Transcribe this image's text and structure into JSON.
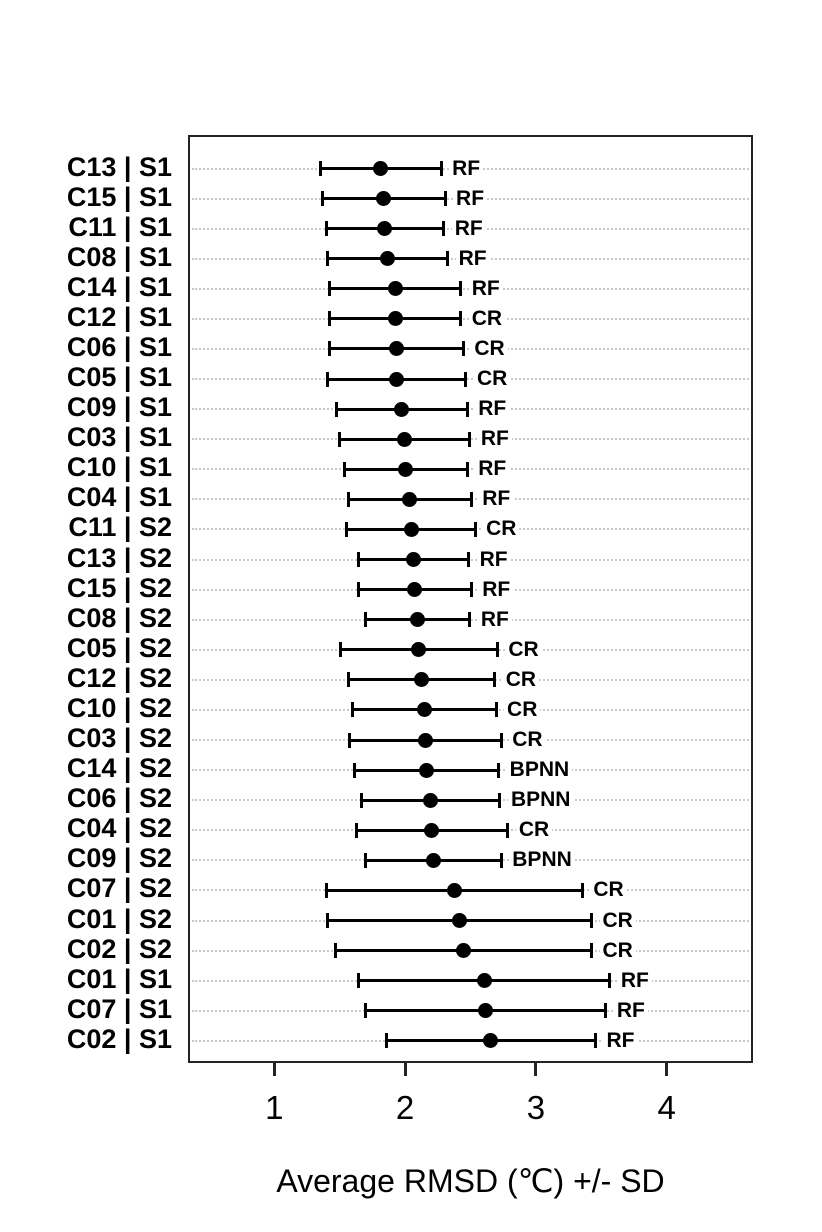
{
  "chart_data": {
    "type": "scatter",
    "subtype": "horizontal-dot-plot-with-error-bars",
    "title": "",
    "xlabel": "Average RMSD (℃) +/- SD",
    "ylabel": "",
    "xlim": [
      0.34,
      4.66
    ],
    "xticks": [
      "1",
      "2",
      "3",
      "4"
    ],
    "grid": "horizontal-dotted",
    "legend": "none",
    "point_color": "#000000",
    "error_bar_color": "#000000",
    "gridline_color": "#c9c9c9",
    "note": "rows ordered top to bottom as displayed; error bars show mean +/- sd",
    "rows": [
      {
        "category": "C13 | S1",
        "method": "RF",
        "mean": 1.8,
        "sd": 0.46
      },
      {
        "category": "C15 | S1",
        "method": "RF",
        "mean": 1.82,
        "sd": 0.47
      },
      {
        "category": "C11 | S1",
        "method": "RF",
        "mean": 1.83,
        "sd": 0.45
      },
      {
        "category": "C08 | S1",
        "method": "RF",
        "mean": 1.85,
        "sd": 0.46
      },
      {
        "category": "C14 | S1",
        "method": "RF",
        "mean": 1.91,
        "sd": 0.5
      },
      {
        "category": "C12 | S1",
        "method": "CR",
        "mean": 1.91,
        "sd": 0.5
      },
      {
        "category": "C06 | S1",
        "method": "CR",
        "mean": 1.92,
        "sd": 0.51
      },
      {
        "category": "C05 | S1",
        "method": "CR",
        "mean": 1.92,
        "sd": 0.53
      },
      {
        "category": "C09 | S1",
        "method": "RF",
        "mean": 1.96,
        "sd": 0.5
      },
      {
        "category": "C03 | S1",
        "method": "RF",
        "mean": 1.98,
        "sd": 0.5
      },
      {
        "category": "C10 | S1",
        "method": "RF",
        "mean": 1.99,
        "sd": 0.47
      },
      {
        "category": "C04 | S1",
        "method": "RF",
        "mean": 2.02,
        "sd": 0.47
      },
      {
        "category": "C11 | S2",
        "method": "CR",
        "mean": 2.03,
        "sd": 0.49
      },
      {
        "category": "C13 | S2",
        "method": "RF",
        "mean": 2.05,
        "sd": 0.42
      },
      {
        "category": "C15 | S2",
        "method": "RF",
        "mean": 2.06,
        "sd": 0.43
      },
      {
        "category": "C08 | S2",
        "method": "RF",
        "mean": 2.08,
        "sd": 0.4
      },
      {
        "category": "C05 | S2",
        "method": "CR",
        "mean": 2.09,
        "sd": 0.6
      },
      {
        "category": "C12 | S2",
        "method": "CR",
        "mean": 2.11,
        "sd": 0.56
      },
      {
        "category": "C10 | S2",
        "method": "CR",
        "mean": 2.13,
        "sd": 0.55
      },
      {
        "category": "C03 | S2",
        "method": "CR",
        "mean": 2.14,
        "sd": 0.58
      },
      {
        "category": "C14 | S2",
        "method": "BPNN",
        "mean": 2.15,
        "sd": 0.55
      },
      {
        "category": "C06 | S2",
        "method": "BPNN",
        "mean": 2.18,
        "sd": 0.53
      },
      {
        "category": "C04 | S2",
        "method": "CR",
        "mean": 2.19,
        "sd": 0.58
      },
      {
        "category": "C09 | S2",
        "method": "BPNN",
        "mean": 2.2,
        "sd": 0.52
      },
      {
        "category": "C07 | S2",
        "method": "CR",
        "mean": 2.36,
        "sd": 0.98
      },
      {
        "category": "C01 | S2",
        "method": "CR",
        "mean": 2.4,
        "sd": 1.01
      },
      {
        "category": "C02 | S2",
        "method": "CR",
        "mean": 2.43,
        "sd": 0.98
      },
      {
        "category": "C01 | S1",
        "method": "RF",
        "mean": 2.59,
        "sd": 0.96
      },
      {
        "category": "C07 | S1",
        "method": "RF",
        "mean": 2.6,
        "sd": 0.92
      },
      {
        "category": "C02 | S1",
        "method": "RF",
        "mean": 2.64,
        "sd": 0.8
      }
    ]
  }
}
